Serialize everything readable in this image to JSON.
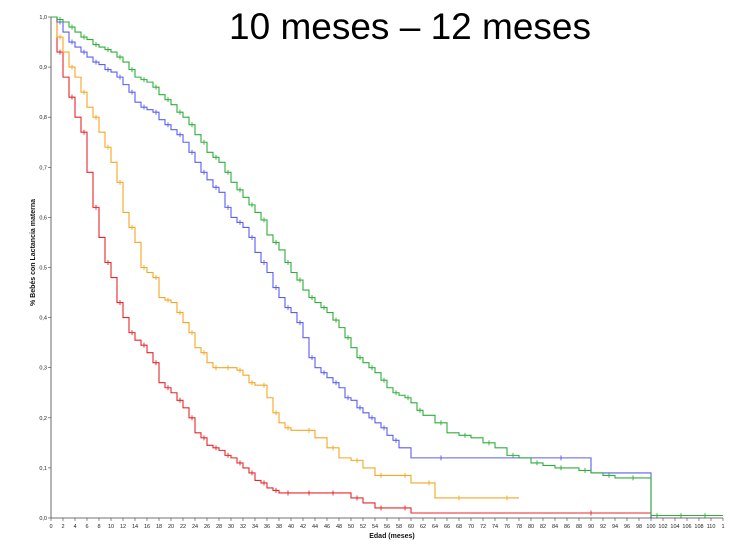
{
  "chart_data": {
    "type": "line",
    "subtype": "step",
    "title": "10 meses – 12 meses",
    "xlabel": "Edad (meses)",
    "ylabel": "% Bebés con Lactancia materna",
    "xlim": [
      0,
      112
    ],
    "ylim": [
      0,
      1
    ],
    "x_ticks": [
      "0",
      "2",
      "4",
      "6",
      "8",
      "10",
      "12",
      "14",
      "16",
      "18",
      "20",
      "22",
      "24",
      "26",
      "28",
      "30",
      "32",
      "34",
      "36",
      "38",
      "40",
      "42",
      "44",
      "46",
      "48",
      "50",
      "52",
      "54",
      "56",
      "58",
      "60",
      "62",
      "64",
      "66",
      "68",
      "70",
      "72",
      "74",
      "76",
      "78",
      "80",
      "82",
      "84",
      "86",
      "88",
      "90",
      "92",
      "94",
      "96",
      "98",
      "100",
      "102",
      "104",
      "106",
      "108",
      "110",
      "1"
    ],
    "y_ticks": [
      "0,0",
      "0,1",
      "0,2",
      "0,3",
      "0,4",
      "0,5",
      "0,6",
      "0,7",
      "0,8",
      "0,9",
      "1,0"
    ],
    "grid": false,
    "legend": "none",
    "series": [
      {
        "color": "#e8262a",
        "x": [
          0,
          1,
          2,
          3,
          4,
          5,
          6,
          7,
          8,
          9,
          10,
          11,
          12,
          13,
          14,
          15,
          16,
          17,
          18,
          19,
          20,
          21,
          22,
          23,
          24,
          25,
          26,
          27,
          28,
          29,
          30,
          31,
          32,
          33,
          34,
          35,
          36,
          37,
          38,
          39,
          40,
          42,
          44,
          46,
          48,
          50,
          52,
          54,
          56,
          58,
          60,
          80,
          100
        ],
        "y": [
          1.0,
          0.93,
          0.88,
          0.84,
          0.8,
          0.77,
          0.69,
          0.62,
          0.56,
          0.51,
          0.48,
          0.43,
          0.4,
          0.37,
          0.355,
          0.345,
          0.33,
          0.31,
          0.27,
          0.26,
          0.25,
          0.235,
          0.22,
          0.2,
          0.17,
          0.16,
          0.145,
          0.14,
          0.135,
          0.125,
          0.12,
          0.11,
          0.1,
          0.09,
          0.075,
          0.07,
          0.06,
          0.055,
          0.05,
          0.05,
          0.05,
          0.05,
          0.05,
          0.05,
          0.05,
          0.04,
          0.03,
          0.02,
          0.02,
          0.02,
          0.01,
          0.01,
          0.0
        ]
      },
      {
        "color": "#f5a623",
        "x": [
          0,
          1,
          2,
          3,
          4,
          5,
          6,
          7,
          8,
          9,
          10,
          11,
          12,
          13,
          14,
          15,
          16,
          17,
          18,
          19,
          20,
          21,
          22,
          23,
          24,
          25,
          26,
          27,
          28,
          29,
          30,
          31,
          32,
          33,
          34,
          35,
          36,
          37,
          38,
          39,
          40,
          42,
          44,
          46,
          48,
          50,
          52,
          54,
          56,
          58,
          60,
          62,
          64,
          66,
          70,
          74,
          78
        ],
        "y": [
          1.0,
          0.96,
          0.93,
          0.9,
          0.88,
          0.85,
          0.82,
          0.8,
          0.77,
          0.74,
          0.71,
          0.67,
          0.61,
          0.58,
          0.55,
          0.5,
          0.49,
          0.48,
          0.44,
          0.435,
          0.43,
          0.41,
          0.39,
          0.37,
          0.34,
          0.33,
          0.31,
          0.3,
          0.3,
          0.3,
          0.3,
          0.295,
          0.285,
          0.27,
          0.265,
          0.265,
          0.24,
          0.21,
          0.19,
          0.18,
          0.175,
          0.175,
          0.16,
          0.14,
          0.12,
          0.115,
          0.1,
          0.085,
          0.085,
          0.085,
          0.07,
          0.07,
          0.04,
          0.04,
          0.04,
          0.04,
          0.04
        ]
      },
      {
        "color": "#5b5ef0",
        "x": [
          0,
          1,
          2,
          3,
          4,
          5,
          6,
          7,
          8,
          9,
          10,
          11,
          12,
          13,
          14,
          15,
          16,
          17,
          18,
          19,
          20,
          21,
          22,
          23,
          24,
          25,
          26,
          27,
          28,
          29,
          30,
          31,
          32,
          33,
          34,
          35,
          36,
          37,
          38,
          39,
          40,
          41,
          42,
          43,
          44,
          45,
          46,
          47,
          48,
          49,
          50,
          51,
          52,
          53,
          54,
          55,
          56,
          57,
          58,
          60,
          70,
          80,
          90,
          100
        ],
        "y": [
          1.0,
          0.99,
          0.97,
          0.95,
          0.94,
          0.93,
          0.92,
          0.91,
          0.905,
          0.895,
          0.89,
          0.88,
          0.865,
          0.85,
          0.83,
          0.82,
          0.815,
          0.81,
          0.795,
          0.785,
          0.775,
          0.765,
          0.75,
          0.73,
          0.71,
          0.69,
          0.675,
          0.66,
          0.65,
          0.62,
          0.6,
          0.59,
          0.58,
          0.56,
          0.53,
          0.51,
          0.49,
          0.46,
          0.44,
          0.42,
          0.41,
          0.39,
          0.36,
          0.32,
          0.3,
          0.29,
          0.28,
          0.27,
          0.26,
          0.24,
          0.235,
          0.22,
          0.21,
          0.2,
          0.19,
          0.18,
          0.165,
          0.155,
          0.14,
          0.12,
          0.12,
          0.12,
          0.09,
          0.0
        ]
      },
      {
        "color": "#2fae3a",
        "x": [
          0,
          1,
          2,
          3,
          4,
          5,
          6,
          7,
          8,
          9,
          10,
          11,
          12,
          13,
          14,
          15,
          16,
          17,
          18,
          19,
          20,
          21,
          22,
          23,
          24,
          25,
          26,
          27,
          28,
          29,
          30,
          31,
          32,
          33,
          34,
          35,
          36,
          37,
          38,
          39,
          40,
          41,
          42,
          43,
          44,
          45,
          46,
          47,
          48,
          49,
          50,
          51,
          52,
          53,
          54,
          55,
          56,
          57,
          58,
          59,
          60,
          61,
          62,
          64,
          66,
          68,
          70,
          72,
          74,
          76,
          78,
          80,
          82,
          84,
          86,
          88,
          90,
          92,
          94,
          96,
          98,
          100,
          102,
          104,
          106,
          108,
          110,
          112
        ],
        "y": [
          1.0,
          0.995,
          0.99,
          0.98,
          0.97,
          0.96,
          0.955,
          0.945,
          0.94,
          0.935,
          0.93,
          0.92,
          0.91,
          0.895,
          0.88,
          0.875,
          0.87,
          0.86,
          0.845,
          0.835,
          0.825,
          0.81,
          0.8,
          0.785,
          0.765,
          0.75,
          0.73,
          0.72,
          0.71,
          0.69,
          0.67,
          0.655,
          0.64,
          0.625,
          0.61,
          0.595,
          0.565,
          0.55,
          0.535,
          0.51,
          0.49,
          0.475,
          0.455,
          0.44,
          0.43,
          0.42,
          0.41,
          0.395,
          0.38,
          0.36,
          0.34,
          0.32,
          0.31,
          0.3,
          0.29,
          0.275,
          0.26,
          0.25,
          0.245,
          0.24,
          0.23,
          0.215,
          0.205,
          0.19,
          0.17,
          0.165,
          0.16,
          0.15,
          0.14,
          0.125,
          0.12,
          0.11,
          0.105,
          0.1,
          0.1,
          0.095,
          0.09,
          0.085,
          0.08,
          0.08,
          0.08,
          0.005,
          0.005,
          0.005,
          0.005,
          0.005,
          0.005,
          0.005
        ]
      }
    ]
  }
}
